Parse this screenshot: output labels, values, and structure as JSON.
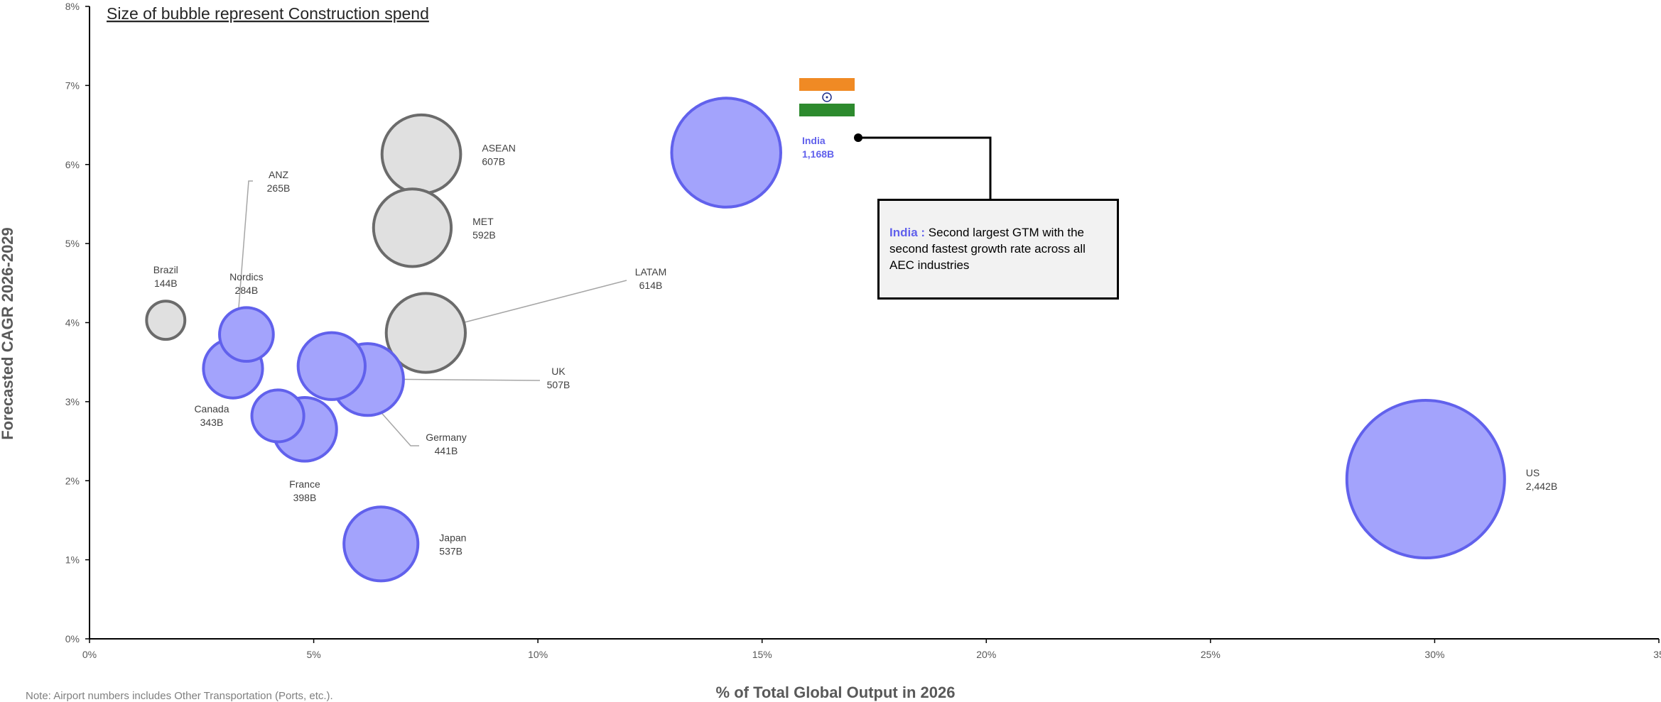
{
  "subtitle": "Size of bubble represent Construction spend",
  "note": "Note: Airport numbers includes Other Transportation (Ports, etc.).",
  "callout": {
    "highlight": "India :",
    "text": " Second largest GTM with the second fastest growth rate across all AEC industries"
  },
  "colors": {
    "highlight_fill": "#a3a3fc",
    "highlight_stroke": "#6161ec",
    "base_fill": "#e0e0e0",
    "base_stroke": "#6b6b6b",
    "flag_saffron": "#f08a24",
    "flag_white": "#ffffff",
    "flag_green": "#2d8a2e"
  },
  "chart_data": {
    "type": "scatter",
    "bubble": true,
    "title": "",
    "xlabel": "% of Total Global Output in 2026",
    "ylabel": "Forecasted CAGR 2026-2029",
    "xlim": [
      0,
      35
    ],
    "ylim": [
      0,
      8
    ],
    "x_ticks": [
      "0%",
      "5%",
      "10%",
      "15%",
      "20%",
      "25%",
      "30%",
      "35"
    ],
    "y_ticks": [
      "0%",
      "1%",
      "2%",
      "3%",
      "4%",
      "5%",
      "6%",
      "7%",
      "8%"
    ],
    "grid": false,
    "points": [
      {
        "name": "US",
        "value": "2,442B",
        "x": 29.8,
        "y": 2.02,
        "size": 2442,
        "highlight": true
      },
      {
        "name": "India",
        "value": "1,168B",
        "x": 14.2,
        "y": 6.15,
        "size": 1168,
        "highlight": true,
        "bold_label": true
      },
      {
        "name": "LATAM",
        "value": "614B",
        "x": 7.5,
        "y": 3.87,
        "size": 614,
        "highlight": false
      },
      {
        "name": "ASEAN",
        "value": "607B",
        "x": 7.4,
        "y": 6.13,
        "size": 607,
        "highlight": false
      },
      {
        "name": "MET",
        "value": "592B",
        "x": 7.2,
        "y": 5.2,
        "size": 592,
        "highlight": false
      },
      {
        "name": "Japan",
        "value": "537B",
        "x": 6.5,
        "y": 1.2,
        "size": 537,
        "highlight": true
      },
      {
        "name": "UK",
        "value": "507B",
        "x": 6.2,
        "y": 3.28,
        "size": 507,
        "highlight": true
      },
      {
        "name": "Germany",
        "value": "441B",
        "x": 5.4,
        "y": 3.45,
        "size": 441,
        "highlight": true
      },
      {
        "name": "France",
        "value": "398B",
        "x": 4.8,
        "y": 2.65,
        "size": 398,
        "highlight": true
      },
      {
        "name": "Canada",
        "value": "343B",
        "x": 3.2,
        "y": 3.42,
        "size": 343,
        "highlight": true
      },
      {
        "name": "Nordics",
        "value": "284B",
        "x": 3.5,
        "y": 3.85,
        "size": 284,
        "highlight": true
      },
      {
        "name": "ANZ",
        "value": "265B",
        "x": 4.2,
        "y": 2.82,
        "size": 265,
        "highlight": true
      },
      {
        "name": "Brazil",
        "value": "144B",
        "x": 1.7,
        "y": 4.03,
        "size": 144,
        "highlight": false
      }
    ]
  }
}
